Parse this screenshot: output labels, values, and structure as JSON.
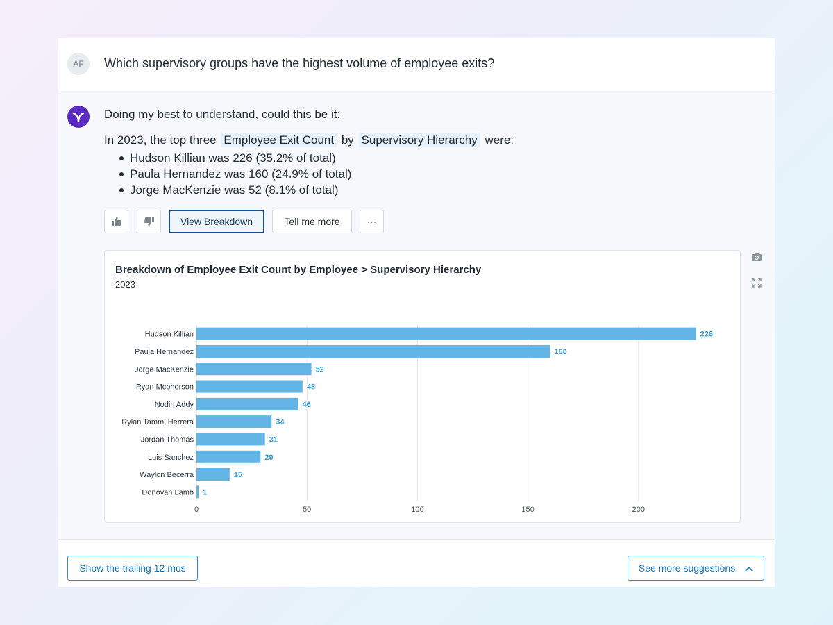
{
  "conversation": {
    "user_initials": "AF",
    "question": "Which supervisory groups have the highest volume of employee exits?",
    "intro": "Doing my best to understand, could this be it:",
    "summary": {
      "prefix": "In 2023, the top three",
      "metric_chip": "Employee Exit Count",
      "by_word": "by",
      "dimension_chip": "Supervisory Hierarchy",
      "suffix": "were:"
    },
    "bullets": [
      "Hudson Killian was 226 (35.2% of total)",
      "Paula Hernandez was 160 (24.9% of total)",
      "Jorge MacKenzie was 52 (8.1% of total)"
    ]
  },
  "actions": {
    "thumbs_up_icon": "thumbs-up-icon",
    "thumbs_down_icon": "thumbs-down-icon",
    "view_breakdown": "View Breakdown",
    "tell_me_more": "Tell me more",
    "more_glyph": "···"
  },
  "side_tools": {
    "camera_icon": "camera-icon",
    "expand_icon": "expand-icon"
  },
  "footer": {
    "trailing_button": "Show the trailing 12 mos",
    "suggestions_button": "See more suggestions"
  },
  "colors": {
    "bar": "#62b5e5",
    "bar_label": "#3d9bd3",
    "accent": "#1c77b3",
    "brand": "#5b2bc4"
  },
  "chart_data": {
    "type": "bar",
    "orientation": "horizontal",
    "title": "Breakdown of Employee Exit Count by Employee > Supervisory Hierarchy",
    "subtitle": "2023",
    "categories": [
      "Hudson Killian",
      "Paula Hernandez",
      "Jorge MacKenzie",
      "Ryan Mcpherson",
      "Nodin Addy",
      "Rylan Tammi Herrera",
      "Jordan Thomas",
      "Luis Sanchez",
      "Waylon Becerra",
      "Donovan Lamb"
    ],
    "values": [
      226,
      160,
      52,
      48,
      46,
      34,
      31,
      29,
      15,
      1
    ],
    "x_ticks": [
      0,
      50,
      100,
      150,
      200
    ],
    "xlim": [
      0,
      231
    ],
    "grid": true,
    "xlabel": "",
    "ylabel": ""
  }
}
